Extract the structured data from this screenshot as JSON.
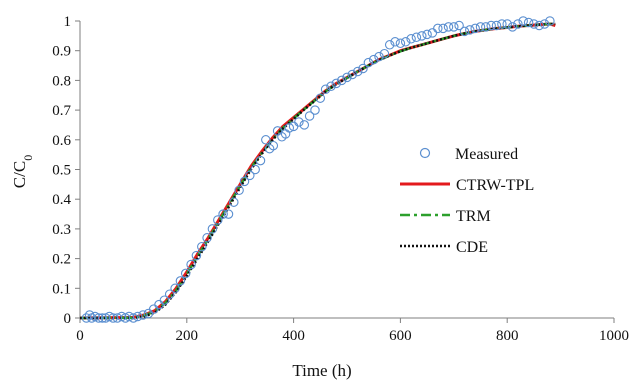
{
  "chart_data": {
    "type": "scatter",
    "xlabel": "Time (h)",
    "ylabel": {
      "base": "C/C",
      "sub": "0"
    },
    "xlim": [
      0,
      1000
    ],
    "ylim": [
      0,
      1
    ],
    "xticks": [
      0,
      200,
      400,
      600,
      800,
      1000
    ],
    "yticks": [
      0,
      0.1,
      0.2,
      0.3,
      0.4,
      0.5,
      0.6,
      0.7,
      0.8,
      0.9,
      1
    ],
    "ytick_labels": [
      "0",
      "0.1",
      "0.2",
      "0.3",
      "0.4",
      "0.5",
      "0.6",
      "0.7",
      "0.8",
      "0.9",
      "1"
    ],
    "xtick_labels": [
      "0",
      "200",
      "400",
      "600",
      "800",
      "1000"
    ],
    "grid": false,
    "legend_position": "right",
    "series": [
      {
        "name": "Measured",
        "kind": "markers",
        "color": "#5b8fd0",
        "x": [
          12,
          18,
          22,
          28,
          35,
          42,
          48,
          55,
          62,
          70,
          78,
          85,
          92,
          100,
          108,
          118,
          128,
          138,
          148,
          158,
          168,
          178,
          188,
          198,
          208,
          218,
          228,
          238,
          248,
          258,
          268,
          278,
          288,
          298,
          308,
          318,
          328,
          338,
          348,
          355,
          362,
          370,
          378,
          385,
          392,
          400,
          410,
          420,
          430,
          440,
          450,
          460,
          470,
          480,
          490,
          500,
          510,
          520,
          530,
          540,
          550,
          560,
          570,
          580,
          590,
          600,
          610,
          620,
          630,
          640,
          650,
          660,
          670,
          680,
          690,
          700,
          710,
          720,
          730,
          740,
          750,
          760,
          770,
          780,
          790,
          800,
          810,
          820,
          830,
          840,
          850,
          860,
          870,
          880
        ],
        "y": [
          0.0,
          0.01,
          0.0,
          0.005,
          0.0,
          0.0,
          0.0,
          0.005,
          0.0,
          0.0,
          0.005,
          0.0,
          0.005,
          0.0,
          0.005,
          0.01,
          0.015,
          0.03,
          0.045,
          0.06,
          0.08,
          0.1,
          0.125,
          0.15,
          0.18,
          0.21,
          0.24,
          0.27,
          0.3,
          0.33,
          0.35,
          0.35,
          0.39,
          0.43,
          0.46,
          0.48,
          0.5,
          0.53,
          0.6,
          0.57,
          0.58,
          0.63,
          0.61,
          0.62,
          0.64,
          0.645,
          0.66,
          0.65,
          0.68,
          0.7,
          0.74,
          0.77,
          0.78,
          0.79,
          0.8,
          0.81,
          0.82,
          0.83,
          0.84,
          0.86,
          0.87,
          0.88,
          0.89,
          0.92,
          0.93,
          0.925,
          0.93,
          0.94,
          0.945,
          0.95,
          0.955,
          0.96,
          0.975,
          0.975,
          0.98,
          0.98,
          0.985,
          0.965,
          0.97,
          0.975,
          0.98,
          0.98,
          0.985,
          0.985,
          0.99,
          0.99,
          0.98,
          0.99,
          1.0,
          0.995,
          0.99,
          0.985,
          0.99,
          1.0
        ]
      },
      {
        "name": "CTRW-TPL",
        "kind": "line",
        "color": "#e31a1c",
        "dash": "",
        "x": [
          0,
          100,
          120,
          140,
          160,
          180,
          200,
          220,
          240,
          260,
          280,
          300,
          320,
          340,
          360,
          380,
          400,
          420,
          440,
          460,
          480,
          500,
          520,
          540,
          560,
          580,
          600,
          620,
          640,
          660,
          680,
          700,
          720,
          740,
          760,
          780,
          800,
          820,
          840,
          860,
          880,
          890
        ],
        "y": [
          0,
          0.002,
          0.01,
          0.025,
          0.055,
          0.1,
          0.155,
          0.215,
          0.27,
          0.33,
          0.39,
          0.45,
          0.51,
          0.56,
          0.605,
          0.645,
          0.675,
          0.705,
          0.735,
          0.765,
          0.79,
          0.81,
          0.83,
          0.85,
          0.87,
          0.885,
          0.9,
          0.91,
          0.92,
          0.93,
          0.94,
          0.95,
          0.958,
          0.965,
          0.97,
          0.975,
          0.978,
          0.982,
          0.985,
          0.988,
          0.99,
          0.985
        ]
      },
      {
        "name": "TRM",
        "kind": "line",
        "color": "#2ca02c",
        "dash": "10,4,3,4",
        "x": [
          0,
          100,
          120,
          140,
          160,
          180,
          200,
          220,
          240,
          260,
          280,
          300,
          320,
          340,
          360,
          380,
          400,
          420,
          440,
          460,
          480,
          500,
          520,
          540,
          560,
          580,
          600,
          620,
          640,
          660,
          680,
          700,
          720,
          740,
          760,
          780,
          800,
          820,
          840,
          860,
          880,
          890
        ],
        "y": [
          0,
          0.001,
          0.008,
          0.022,
          0.05,
          0.093,
          0.148,
          0.208,
          0.265,
          0.325,
          0.385,
          0.445,
          0.505,
          0.555,
          0.6,
          0.64,
          0.672,
          0.703,
          0.733,
          0.763,
          0.788,
          0.808,
          0.83,
          0.85,
          0.868,
          0.884,
          0.898,
          0.91,
          0.92,
          0.93,
          0.94,
          0.95,
          0.958,
          0.965,
          0.97,
          0.975,
          0.978,
          0.982,
          0.985,
          0.988,
          0.99,
          0.99
        ]
      },
      {
        "name": "CDE",
        "kind": "line",
        "color": "#111111",
        "dash": "2,2",
        "x": [
          0,
          100,
          120,
          140,
          160,
          180,
          200,
          220,
          240,
          260,
          280,
          300,
          320,
          340,
          360,
          380,
          400,
          420,
          440,
          460,
          480,
          500,
          520,
          540,
          560,
          580,
          600,
          620,
          640,
          660,
          680,
          700,
          720,
          740,
          760,
          780,
          800,
          820,
          840,
          860,
          880,
          890
        ],
        "y": [
          0,
          0.0,
          0.005,
          0.018,
          0.045,
          0.088,
          0.142,
          0.2,
          0.258,
          0.318,
          0.378,
          0.44,
          0.5,
          0.552,
          0.598,
          0.638,
          0.67,
          0.702,
          0.732,
          0.762,
          0.787,
          0.808,
          0.83,
          0.85,
          0.868,
          0.884,
          0.898,
          0.91,
          0.92,
          0.93,
          0.94,
          0.95,
          0.958,
          0.965,
          0.97,
          0.975,
          0.978,
          0.982,
          0.985,
          0.988,
          0.99,
          0.99
        ]
      }
    ]
  }
}
